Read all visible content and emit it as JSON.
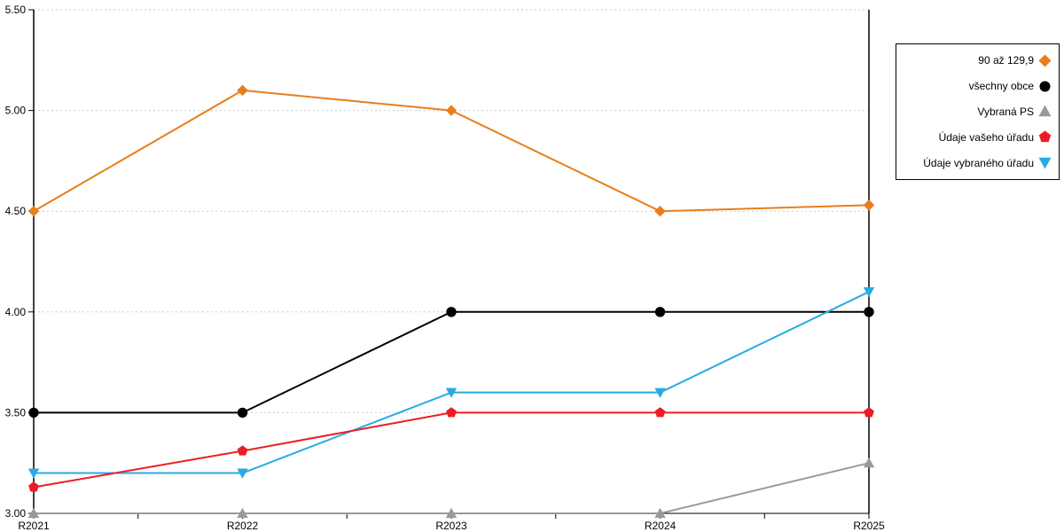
{
  "chart_data": {
    "type": "line",
    "categories": [
      "R2021",
      "R2022",
      "R2023",
      "R2024",
      "R2025"
    ],
    "series": [
      {
        "name": "90 až 129,9",
        "color": "#E87E1C",
        "marker": "diamond",
        "values": [
          4.5,
          5.1,
          5.0,
          4.5,
          4.53
        ]
      },
      {
        "name": "všechny obce",
        "color": "#000000",
        "marker": "circle",
        "values": [
          3.5,
          3.5,
          4.0,
          4.0,
          4.0
        ]
      },
      {
        "name": "Vybraná PS",
        "color": "#999999",
        "marker": "triangle-up",
        "values": [
          3.0,
          3.0,
          3.0,
          3.0,
          3.25
        ]
      },
      {
        "name": "Údaje vašeho úřadu",
        "color": "#ED1C24",
        "marker": "pentagon",
        "values": [
          3.13,
          3.31,
          3.5,
          3.5,
          3.5
        ]
      },
      {
        "name": "Údaje vybraného úřadu",
        "color": "#29ABE2",
        "marker": "triangle-down",
        "values": [
          3.2,
          3.2,
          3.6,
          3.6,
          4.1
        ]
      }
    ],
    "ylim": [
      3.0,
      5.5
    ],
    "ytick_step": 0.5,
    "ytick_labels": [
      "3.00",
      "3.50",
      "4.00",
      "4.50",
      "5.00",
      "5.50"
    ],
    "xlabel": "",
    "ylabel": "",
    "title": "",
    "grid": "horizontal-dashed",
    "gridline_color": "#CCCCCC",
    "axis_color": "#000000",
    "legend_position": "right"
  }
}
